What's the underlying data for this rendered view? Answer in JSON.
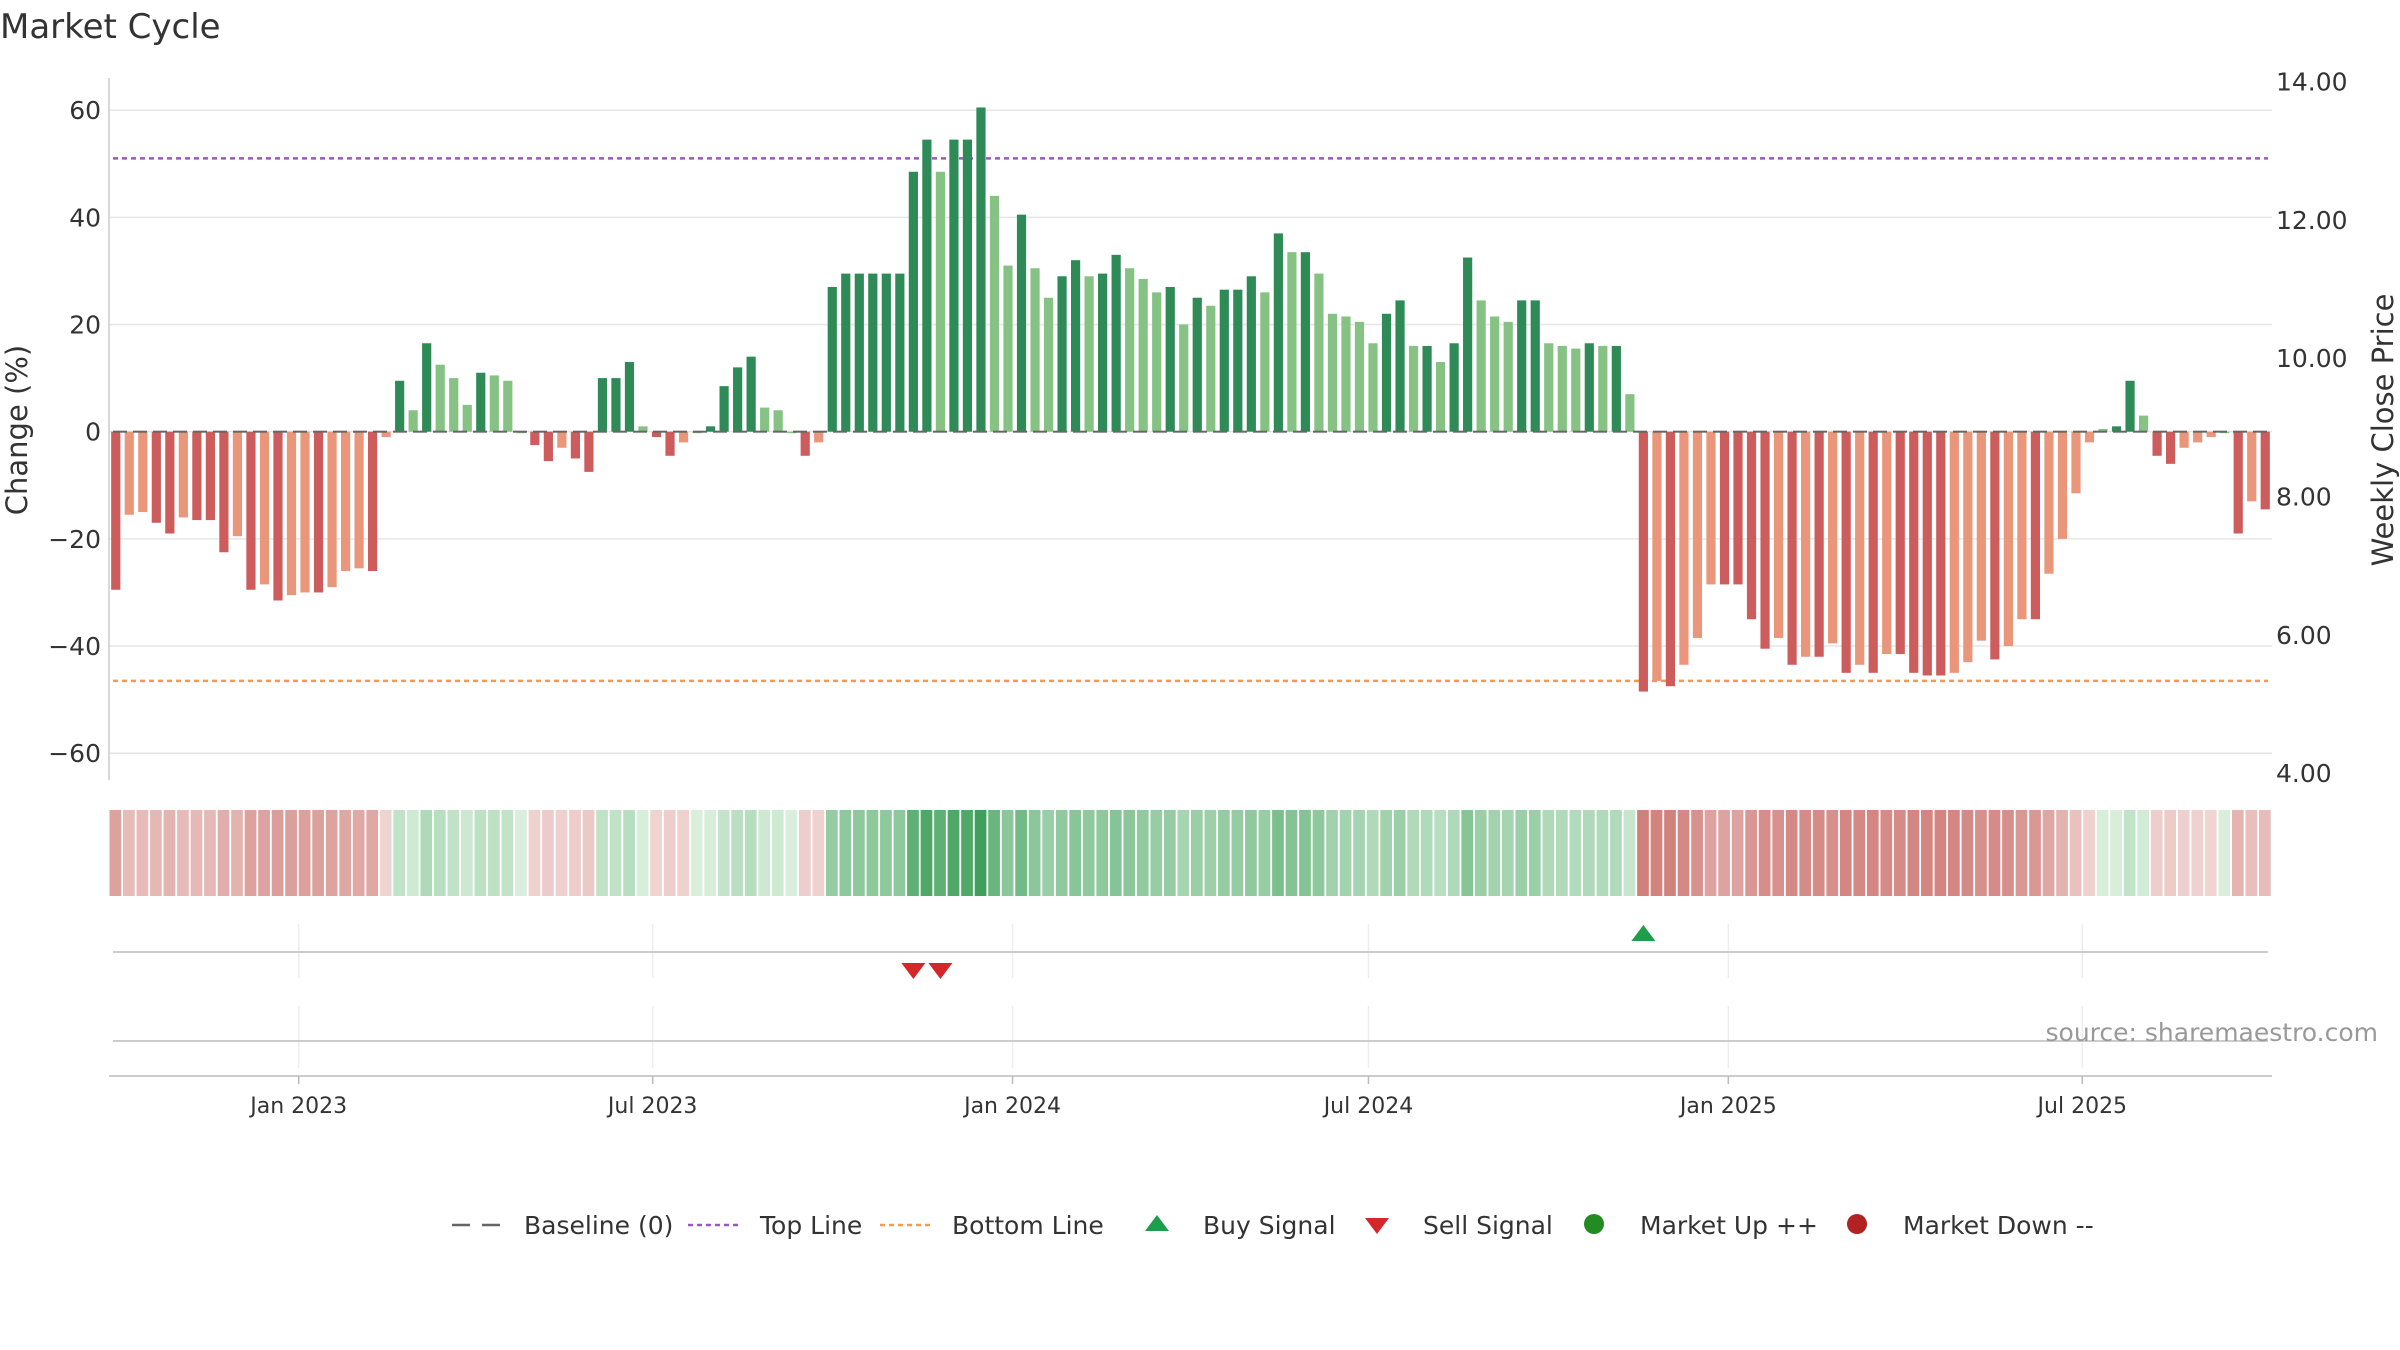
{
  "chart_data": {
    "type": "bar",
    "title": "Market Cycle",
    "ylabel": "Change (%)",
    "ylabel_right": "Weekly Close Price",
    "ylim": [
      -65,
      66
    ],
    "y_ticks": [
      60,
      40,
      20,
      0,
      -20,
      -40,
      -60
    ],
    "y_tick_labels": [
      "60",
      "40",
      "20",
      "0",
      "−20",
      "−40",
      "−60"
    ],
    "y2lim": [
      3.9,
      14.05
    ],
    "y2_ticks": [
      14,
      12,
      10,
      8,
      6,
      4
    ],
    "y2_tick_labels": [
      "14.00",
      "12.00",
      "10.00",
      "8.00",
      "6.00",
      "4.00"
    ],
    "x_range": [
      "2022-09-26",
      "2025-10-06"
    ],
    "x_ticks": [
      {
        "date": "2023-01-01",
        "label": "Jan 2023"
      },
      {
        "date": "2023-07-01",
        "label": "Jul 2023"
      },
      {
        "date": "2024-01-01",
        "label": "Jan 2024"
      },
      {
        "date": "2024-07-01",
        "label": "Jul 2024"
      },
      {
        "date": "2025-01-01",
        "label": "Jan 2025"
      },
      {
        "date": "2025-07-01",
        "label": "Jul 2025"
      }
    ],
    "first_week": "2022-09-26",
    "values": [
      -29.5,
      -15.5,
      -15,
      -17,
      -19,
      -16,
      -16.5,
      -16.5,
      -22.5,
      -19.5,
      -29.5,
      -28.5,
      -31.5,
      -30.5,
      -30,
      -30,
      -29,
      -26,
      -25.5,
      -26,
      -1,
      9.5,
      4,
      16.5,
      12.5,
      10,
      5,
      11,
      10.5,
      9.5,
      0,
      -2.5,
      -5.5,
      -3,
      -5,
      -7.5,
      10,
      10,
      13,
      1,
      -1,
      -4.5,
      -2,
      0,
      1,
      8.5,
      12,
      14,
      4.5,
      4,
      0,
      -4.5,
      -2,
      27,
      29.5,
      29.5,
      29.5,
      29.5,
      29.5,
      48.5,
      54.5,
      48.5,
      54.5,
      54.5,
      60.5,
      44,
      31,
      40.5,
      30.5,
      25,
      29,
      32,
      29,
      29.5,
      33,
      30.5,
      28.5,
      26,
      27,
      20,
      25,
      23.5,
      26.5,
      26.5,
      29,
      26,
      37,
      33.5,
      33.5,
      29.5,
      22,
      21.5,
      20.5,
      16.5,
      22,
      24.5,
      16,
      16,
      13,
      16.5,
      32.5,
      24.5,
      21.5,
      20.5,
      24.5,
      24.5,
      16.5,
      16,
      15.5,
      16.5,
      16,
      16,
      7,
      -48.5,
      -46.5,
      -47.5,
      -43.5,
      -38.5,
      -28.5,
      -28.5,
      -28.5,
      -35,
      -40.5,
      -38.5,
      -43.5,
      -42,
      -42,
      -39.5,
      -45,
      -43.5,
      -45,
      -41.5,
      -41.5,
      -45,
      -45.5,
      -45.5,
      -45,
      -43,
      -39,
      -42.5,
      -40,
      -35,
      -35,
      -26.5,
      -20,
      -11.5,
      -2,
      0.5,
      1,
      9.5,
      3,
      -4.5,
      -6,
      -3,
      -2,
      -1,
      0,
      -19,
      -13,
      -14.5
    ],
    "top_line": 51,
    "bottom_line": -46.5,
    "buy_signals": [
      {
        "week": 113
      }
    ],
    "sell_signals": [
      {
        "week": 59
      },
      {
        "week": 61
      }
    ],
    "series_colors": {
      "up_strong": "#2e8b57",
      "up_weak": "#86c284",
      "down_strong": "#cd5c5c",
      "down_weak": "#e9967a",
      "top_line": "#9b59b6",
      "bottom_line": "#f39c4f",
      "baseline": "#666666",
      "buy": "#1e9e4a",
      "sell": "#d62728",
      "market_up": "#228b22",
      "market_down": "#b22222"
    },
    "legend": [
      {
        "label": "Baseline (0)",
        "marker": "dash-line",
        "color": "#666666"
      },
      {
        "label": "Top Line",
        "marker": "dot-line",
        "color": "#9b59b6"
      },
      {
        "label": "Bottom Line",
        "marker": "dot-line",
        "color": "#f39c4f"
      },
      {
        "label": "Buy Signal",
        "marker": "triangle-up",
        "color": "#1e9e4a"
      },
      {
        "label": "Sell Signal",
        "marker": "triangle-down",
        "color": "#d62728"
      },
      {
        "label": "Market Up ++",
        "marker": "circle",
        "color": "#228b22"
      },
      {
        "label": "Market Down --",
        "marker": "circle",
        "color": "#b22222"
      }
    ],
    "legend_position": "bottom",
    "grid": true,
    "source": "source: sharemaestro.com"
  }
}
